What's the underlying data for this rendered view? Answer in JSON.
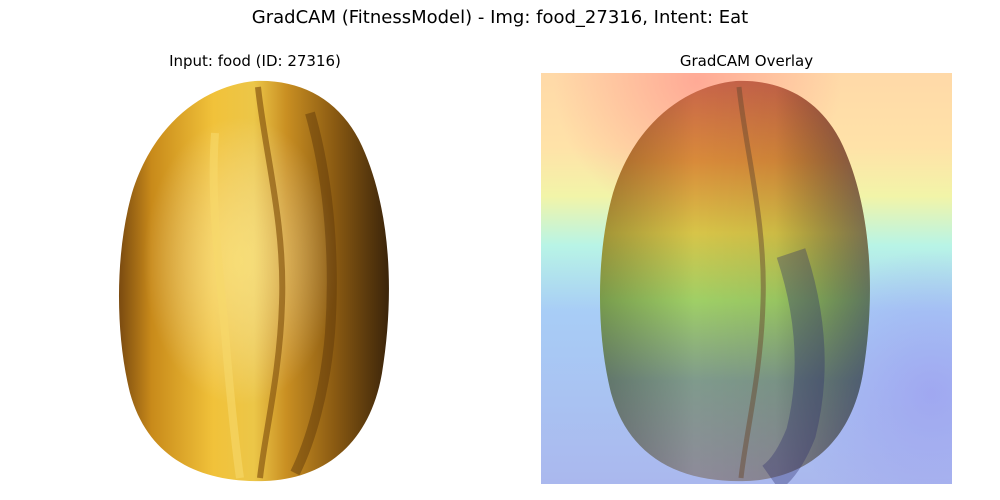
{
  "figure": {
    "suptitle": "GradCAM (FitnessModel) - Img: food_27316, Intent: Eat"
  },
  "panels": [
    {
      "title": "Input: food (ID: 27316)"
    },
    {
      "title": "GradCAM Overlay"
    }
  ]
}
